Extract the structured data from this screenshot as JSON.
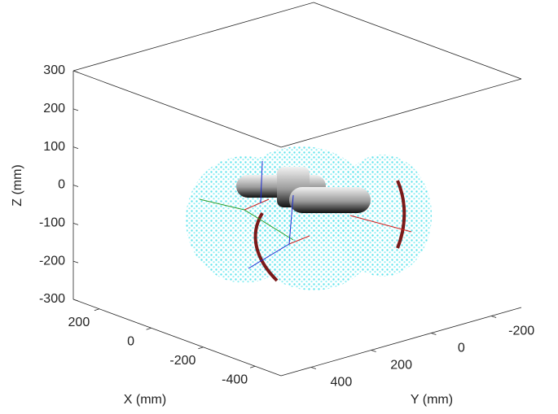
{
  "chart_data": {
    "type": "scatter3d",
    "xlabel": "X (mm)",
    "ylabel": "Y (mm)",
    "zlabel": "Z (mm)",
    "xlim": [
      -500,
      300
    ],
    "ylim": [
      -300,
      500
    ],
    "zlim": [
      -300,
      300
    ],
    "xticks": [
      -400,
      -200,
      0,
      200
    ],
    "yticks": [
      -200,
      0,
      200,
      400
    ],
    "zticks": [
      -300,
      -200,
      -100,
      0,
      100,
      200,
      300
    ]
  }
}
